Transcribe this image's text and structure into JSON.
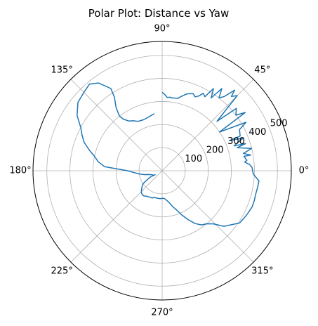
{
  "chart_data": {
    "type": "line",
    "projection": "polar",
    "title": "Polar Plot: Distance vs Yaw",
    "angle_unit": "degrees",
    "theta_ticks": [
      {
        "value": 0,
        "label": "0°"
      },
      {
        "value": 45,
        "label": "45°"
      },
      {
        "value": 90,
        "label": "90°"
      },
      {
        "value": 135,
        "label": "135°"
      },
      {
        "value": 180,
        "label": "180°"
      },
      {
        "value": 225,
        "label": "225°"
      },
      {
        "value": 270,
        "label": "270°"
      },
      {
        "value": 315,
        "label": "315°"
      }
    ],
    "r_ticks": [
      {
        "value": 100,
        "label": "100"
      },
      {
        "value": 200,
        "label": "200"
      },
      {
        "value": 300,
        "label": "300"
      },
      {
        "value": 400,
        "label": "400"
      },
      {
        "value": 500,
        "label": "500"
      }
    ],
    "rlim": [
      0,
      560
    ],
    "r_label_angle": 22.5,
    "grid": true,
    "line_color": "#1f77b4",
    "series": [
      {
        "theta": [
          98,
          104,
          110,
          116,
          120,
          124,
          127,
          128,
          127,
          126,
          123,
          122,
          126,
          130,
          135,
          141,
          147,
          152,
          156,
          160,
          164,
          168,
          172,
          176,
          180,
          184,
          188,
          192,
          196,
          200,
          204,
          208,
          210,
          209,
          208,
          210,
          214,
          218,
          222,
          226,
          230,
          234,
          238,
          242,
          246,
          250,
          254,
          258,
          262,
          266,
          270,
          274,
          278,
          282,
          286,
          290,
          294,
          298,
          302,
          306,
          310,
          314,
          318,
          322,
          326,
          330,
          334,
          338,
          342,
          346,
          350,
          354,
          358,
          2,
          4,
          6,
          7,
          10,
          10,
          12,
          14,
          17,
          18,
          19,
          22,
          24,
          24,
          28,
          30,
          34,
          35,
          37,
          40,
          42,
          45,
          47,
          48,
          50,
          52,
          54,
          56,
          58,
          60,
          62,
          64,
          66,
          68,
          70,
          72,
          74,
          76,
          78,
          80,
          82,
          84,
          86,
          88,
          90
        ],
        "r": [
          250,
          240,
          235,
          238,
          250,
          260,
          280,
          300,
          320,
          340,
          380,
          420,
          470,
          490,
          480,
          470,
          440,
          400,
          380,
          360,
          330,
          300,
          280,
          250,
          150,
          120,
          100,
          80,
          60,
          50,
          45,
          40,
          35,
          40,
          55,
          70,
          100,
          110,
          120,
          130,
          135,
          135,
          130,
          128,
          126,
          126,
          120,
          121,
          121,
          121,
          120,
          120,
          128,
          140,
          160,
          180,
          210,
          240,
          270,
          290,
          300,
          320,
          360,
          380,
          405,
          410,
          415,
          420,
          420,
          418,
          420,
          422,
          395,
          390,
          380,
          360,
          370,
          360,
          390,
          360,
          400,
          340,
          380,
          330,
          380,
          320,
          370,
          380,
          420,
          300,
          440,
          400,
          420,
          320,
          460,
          440,
          470,
          420,
          400,
          440,
          380,
          420,
          370,
          380,
          360,
          350,
          360,
          355,
          350,
          340,
          330,
          320,
          320,
          318,
          320,
          318,
          330,
          340
        ]
      }
    ]
  }
}
